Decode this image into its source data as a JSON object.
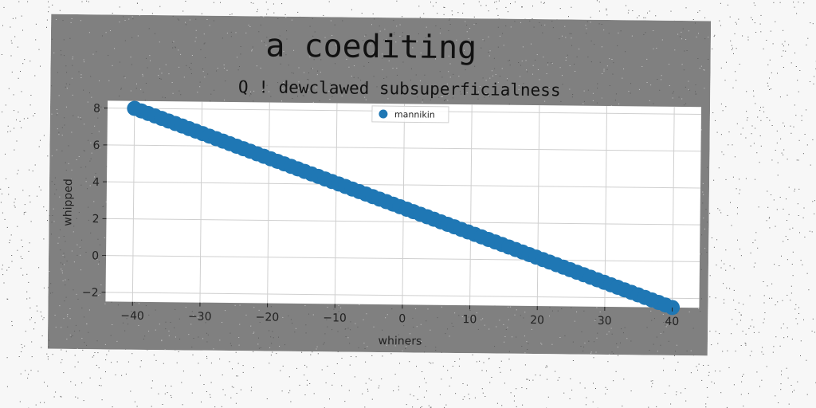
{
  "chart_data": {
    "type": "scatter",
    "title": "a coediting",
    "subtitle": "Q ! dewclawed subsuperficialness",
    "xlabel": "whiners",
    "ylabel": "whipped",
    "xlim": [
      -44,
      44
    ],
    "ylim": [
      -2.5,
      8.4
    ],
    "xticks": [
      -40,
      -30,
      -20,
      -10,
      0,
      10,
      20,
      30,
      40
    ],
    "yticks": [
      -2,
      0,
      2,
      4,
      6,
      8
    ],
    "xtick_labels": [
      "−40",
      "−30",
      "−20",
      "−10",
      "0",
      "10",
      "20",
      "30",
      "40"
    ],
    "ytick_labels": [
      "−2",
      "0",
      "2",
      "4",
      "6",
      "8"
    ],
    "grid": true,
    "legend_position": "top-center",
    "series": [
      {
        "name": "mannikin",
        "color": "#1f77b4",
        "x_start": -40,
        "x_end": 40,
        "y_start": 8,
        "y_end": -2.5,
        "point_count": 80
      }
    ]
  }
}
